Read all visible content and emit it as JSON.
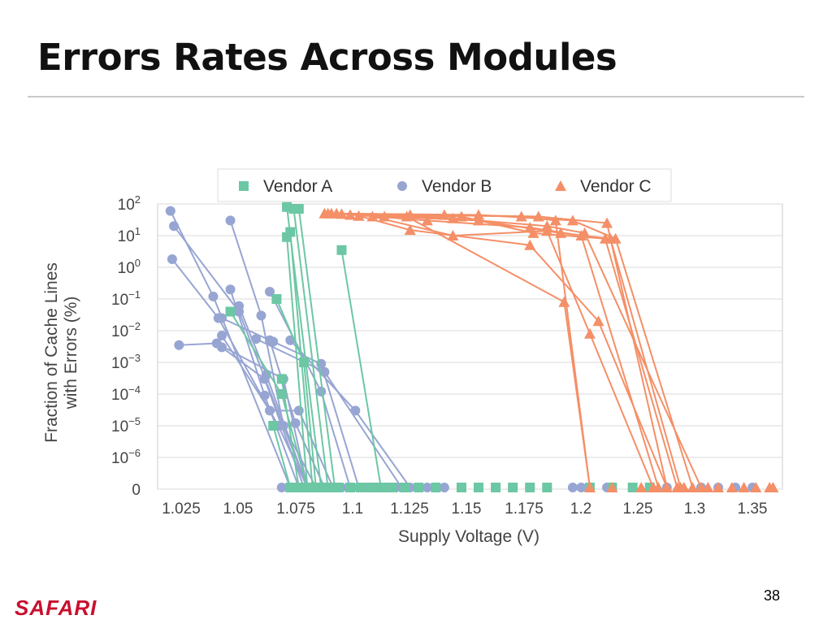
{
  "slide": {
    "title": "Errors Rates Across Modules",
    "page_number": "38",
    "logo_text": "SAFARI"
  },
  "colors": {
    "vendor_a": "#6cc7a4",
    "vendor_b": "#97a5d3",
    "vendor_c": "#f48f67",
    "grid": "#d9d9d9",
    "logo": "#c8102e"
  },
  "chart_data": {
    "type": "scatter",
    "xlabel": "Supply Voltage (V)",
    "ylabel": "Fraction of Cache Lines with Errors (%)",
    "xlim": [
      1.0125,
      1.3775
    ],
    "x_ticks": [
      "1.025",
      "1.05",
      "1.075",
      "1.1",
      "1.125",
      "1.15",
      "1.175",
      "1.2",
      "1.25",
      "1.3",
      "1.35"
    ],
    "y_ticks": [
      {
        "base": "0",
        "exp": ""
      },
      {
        "base": "10",
        "exp": "−6"
      },
      {
        "base": "10",
        "exp": "−5"
      },
      {
        "base": "10",
        "exp": "−4"
      },
      {
        "base": "10",
        "exp": "−3"
      },
      {
        "base": "10",
        "exp": "−2"
      },
      {
        "base": "10",
        "exp": "−1"
      },
      {
        "base": "10",
        "exp": "0"
      },
      {
        "base": "10",
        "exp": "1"
      },
      {
        "base": "10",
        "exp": "2"
      }
    ],
    "y_scale": "log (bottom row = 0)",
    "grid": true,
    "legend_position": "top",
    "series": [
      {
        "name": "Vendor A",
        "marker": "square",
        "lines": [
          [
            [
              1.055,
              0.04
            ],
            [
              1.085,
              0.0001
            ],
            [
              1.1,
              0
            ]
          ],
          [
            [
              1.082,
              0.1
            ],
            [
              1.098,
              0.001
            ],
            [
              1.105,
              0
            ]
          ],
          [
            [
              1.08,
              1e-05
            ],
            [
              1.09,
              0
            ]
          ],
          [
            [
              1.085,
              0.0003
            ],
            [
              1.095,
              0
            ]
          ],
          [
            [
              1.088,
              80
            ],
            [
              1.108,
              0
            ]
          ],
          [
            [
              1.092,
              70
            ],
            [
              1.112,
              0
            ]
          ],
          [
            [
              1.095,
              70
            ],
            [
              1.116,
              0
            ]
          ],
          [
            [
              1.09,
              13
            ],
            [
              1.103,
              0
            ]
          ],
          [
            [
              1.088,
              9
            ],
            [
              1.1,
              0
            ]
          ],
          [
            [
              1.12,
              3.5
            ],
            [
              1.143,
              0
            ]
          ]
        ],
        "zero_points": [
          1.105,
          1.118,
          1.125,
          1.131,
          1.137,
          1.145,
          1.15,
          1.157,
          1.165,
          1.175,
          1.19,
          1.2,
          1.21,
          1.22,
          1.23,
          1.24,
          1.265,
          1.278,
          1.29,
          1.3
        ]
      },
      {
        "name": "Vendor B",
        "marker": "circle",
        "lines": [
          [
            [
              1.02,
              60
            ],
            [
              1.045,
              0.12
            ],
            [
              1.09,
              0
            ]
          ],
          [
            [
              1.022,
              20
            ],
            [
              1.06,
              0.04
            ],
            [
              1.1,
              0
            ]
          ],
          [
            [
              1.021,
              1.8
            ],
            [
              1.048,
              0.025
            ],
            [
              1.083,
              1e-05
            ],
            [
              1.1,
              0
            ]
          ],
          [
            [
              1.025,
              0.0035
            ],
            [
              1.047,
              0.004
            ],
            [
              1.086,
              0.0003
            ],
            [
              1.1,
              0
            ]
          ],
          [
            [
              1.05,
              0.003
            ],
            [
              1.075,
              0.0003
            ],
            [
              1.098,
              0
            ]
          ],
          [
            [
              1.055,
              30
            ],
            [
              1.073,
              0.03
            ],
            [
              1.086,
              1e-05
            ],
            [
              1.105,
              0
            ]
          ],
          [
            [
              1.055,
              0.2
            ],
            [
              1.075,
              9e-05
            ],
            [
              1.095,
              0
            ]
          ],
          [
            [
              1.05,
              0.025
            ],
            [
              1.078,
              0.005
            ],
            [
              1.093,
              1.2e-05
            ],
            [
              1.11,
              0
            ]
          ],
          [
            [
              1.06,
              0.06
            ],
            [
              1.076,
              0.0004
            ],
            [
              1.1,
              0
            ]
          ],
          [
            [
              1.05,
              0.007
            ],
            [
              1.078,
              3e-05
            ],
            [
              1.095,
              3e-05
            ],
            [
              1.115,
              0
            ]
          ],
          [
            [
              1.078,
              0.17
            ],
            [
              1.108,
              0.00012
            ],
            [
              1.125,
              0
            ]
          ],
          [
            [
              1.08,
              0.0045
            ],
            [
              1.108,
              0.0009
            ],
            [
              1.13,
              0
            ]
          ],
          [
            [
              1.07,
              0.0055
            ],
            [
              1.11,
              0.0005
            ],
            [
              1.155,
              0
            ]
          ],
          [
            [
              1.09,
              0.005
            ],
            [
              1.128,
              3e-05
            ],
            [
              1.16,
              0
            ]
          ]
        ],
        "zero_points": [
          1.085,
          1.095,
          1.105,
          1.115,
          1.12,
          1.125,
          1.13,
          1.135,
          1.14,
          1.15,
          1.155,
          1.165,
          1.17,
          1.18,
          1.19,
          1.2,
          1.21,
          1.22,
          1.23,
          1.24,
          1.255,
          1.26,
          1.275,
          1.3,
          1.31,
          1.33,
          1.34,
          1.35,
          1.36
        ]
      },
      {
        "name": "Vendor C",
        "marker": "triangle",
        "lines": [
          [
            [
              1.11,
              50
            ],
            [
              1.16,
              45
            ],
            [
              1.225,
              40
            ],
            [
              1.245,
              30
            ],
            [
              1.265,
              0
            ]
          ],
          [
            [
              1.112,
              50
            ],
            [
              1.18,
              45
            ],
            [
              1.235,
              40
            ],
            [
              1.275,
              25
            ],
            [
              1.31,
              0
            ]
          ],
          [
            [
              1.114,
              50
            ],
            [
              1.2,
              45
            ],
            [
              1.255,
              30
            ],
            [
              1.28,
              8
            ],
            [
              1.325,
              0
            ]
          ],
          [
            [
              1.117,
              50
            ],
            [
              1.185,
              35
            ],
            [
              1.24,
              20
            ],
            [
              1.262,
              12
            ],
            [
              1.33,
              0
            ]
          ],
          [
            [
              1.12,
              48
            ],
            [
              1.17,
              30
            ],
            [
              1.23,
              18
            ],
            [
              1.26,
              10
            ],
            [
              1.305,
              0
            ]
          ],
          [
            [
              1.125,
              45
            ],
            [
              1.19,
              40
            ],
            [
              1.232,
              12
            ],
            [
              1.274,
              8
            ],
            [
              1.316,
              0
            ]
          ],
          [
            [
              1.13,
              42
            ],
            [
              1.16,
              15
            ],
            [
              1.23,
              5
            ],
            [
              1.27,
              0.02
            ],
            [
              1.31,
              0
            ]
          ],
          [
            [
              1.138,
              40
            ],
            [
              1.185,
              10
            ],
            [
              1.24,
              14
            ],
            [
              1.265,
              0.008
            ],
            [
              1.302,
              0
            ]
          ],
          [
            [
              1.145,
              40
            ],
            [
              1.2,
              30
            ],
            [
              1.248,
              12
            ],
            [
              1.277,
              8
            ],
            [
              1.318,
              0
            ]
          ],
          [
            [
              1.158,
              40
            ],
            [
              1.25,
              0.08
            ],
            [
              1.265,
              0
            ]
          ]
        ],
        "zero_points": [
          1.278,
          1.295,
          1.305,
          1.32,
          1.334,
          1.34,
          1.348,
          1.355,
          1.362,
          1.37,
          1.372
        ]
      }
    ]
  }
}
